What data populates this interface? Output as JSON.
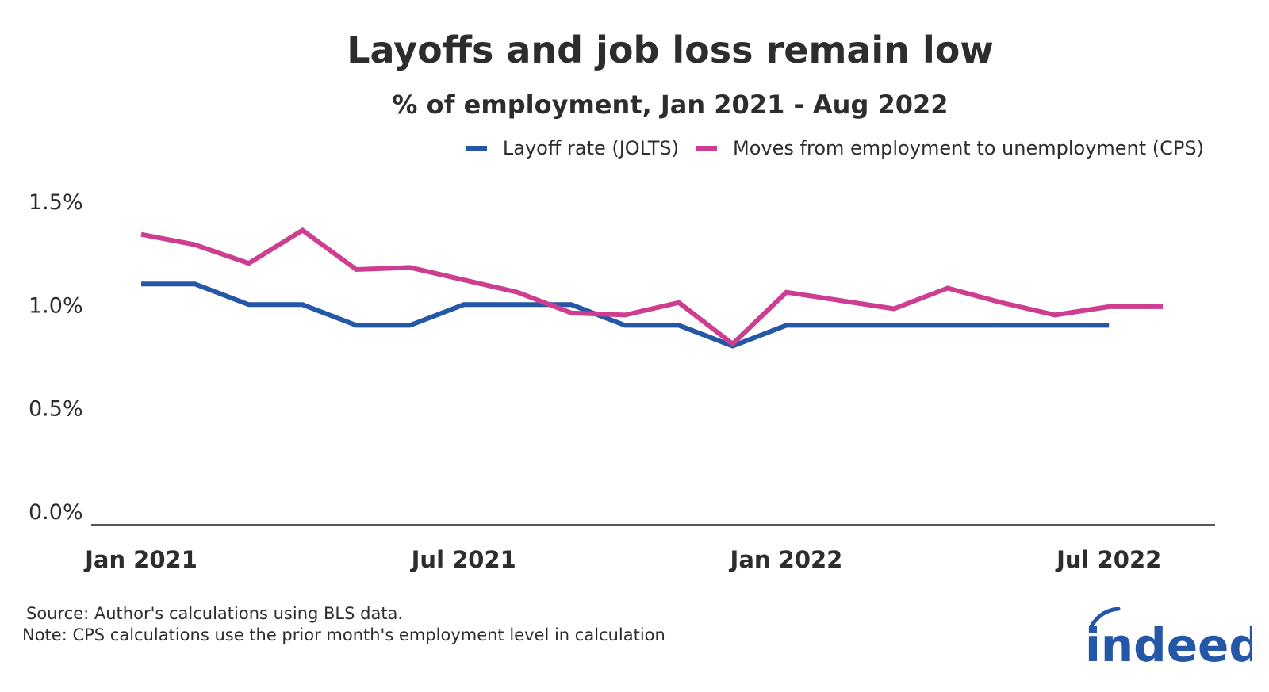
{
  "chart_data": {
    "type": "line",
    "title": "Layoffs and job loss remain low",
    "subtitle": "% of employment, Jan 2021 - Aug 2022",
    "x": [
      "2021-01",
      "2021-02",
      "2021-03",
      "2021-04",
      "2021-05",
      "2021-06",
      "2021-07",
      "2021-08",
      "2021-09",
      "2021-10",
      "2021-11",
      "2021-12",
      "2022-01",
      "2022-02",
      "2022-03",
      "2022-04",
      "2022-05",
      "2022-06",
      "2022-07",
      "2022-08"
    ],
    "x_tick_labels": [
      {
        "label": "Jan 2021",
        "x": "2021-01"
      },
      {
        "label": "Jul 2021",
        "x": "2021-07"
      },
      {
        "label": "Jan 2022",
        "x": "2022-01"
      },
      {
        "label": "Jul 2022",
        "x": "2022-07"
      }
    ],
    "y_tick_labels": [
      {
        "label": "0.0%",
        "value": 0.0
      },
      {
        "label": "0.5%",
        "value": 0.5
      },
      {
        "label": "1.0%",
        "value": 1.0
      },
      {
        "label": "1.5%",
        "value": 1.5
      }
    ],
    "ylim": [
      0.0,
      1.5
    ],
    "grid": false,
    "legend_position": "top-right",
    "series": [
      {
        "name": "Layoff rate (JOLTS)",
        "color": "#2557a7",
        "values": [
          1.1,
          1.1,
          1.0,
          1.0,
          0.9,
          0.9,
          1.0,
          1.0,
          1.0,
          0.9,
          0.9,
          0.8,
          0.9,
          0.9,
          0.9,
          0.9,
          0.9,
          0.9,
          0.9,
          null
        ]
      },
      {
        "name": "Moves from employment to unemployment (CPS)",
        "color": "#cd3e91",
        "values": [
          1.34,
          1.29,
          1.2,
          1.36,
          1.17,
          1.18,
          1.12,
          1.06,
          0.96,
          0.95,
          1.01,
          0.81,
          1.06,
          1.02,
          0.98,
          1.08,
          1.01,
          0.95,
          0.99,
          0.99
        ]
      }
    ]
  },
  "footer": {
    "source": "Source: Author's calculations using BLS data.",
    "note": "Note: CPS calculations use the prior month's employment level in calculation"
  },
  "brand": {
    "logo_text": "indeed",
    "logo_color": "#2557a7"
  }
}
